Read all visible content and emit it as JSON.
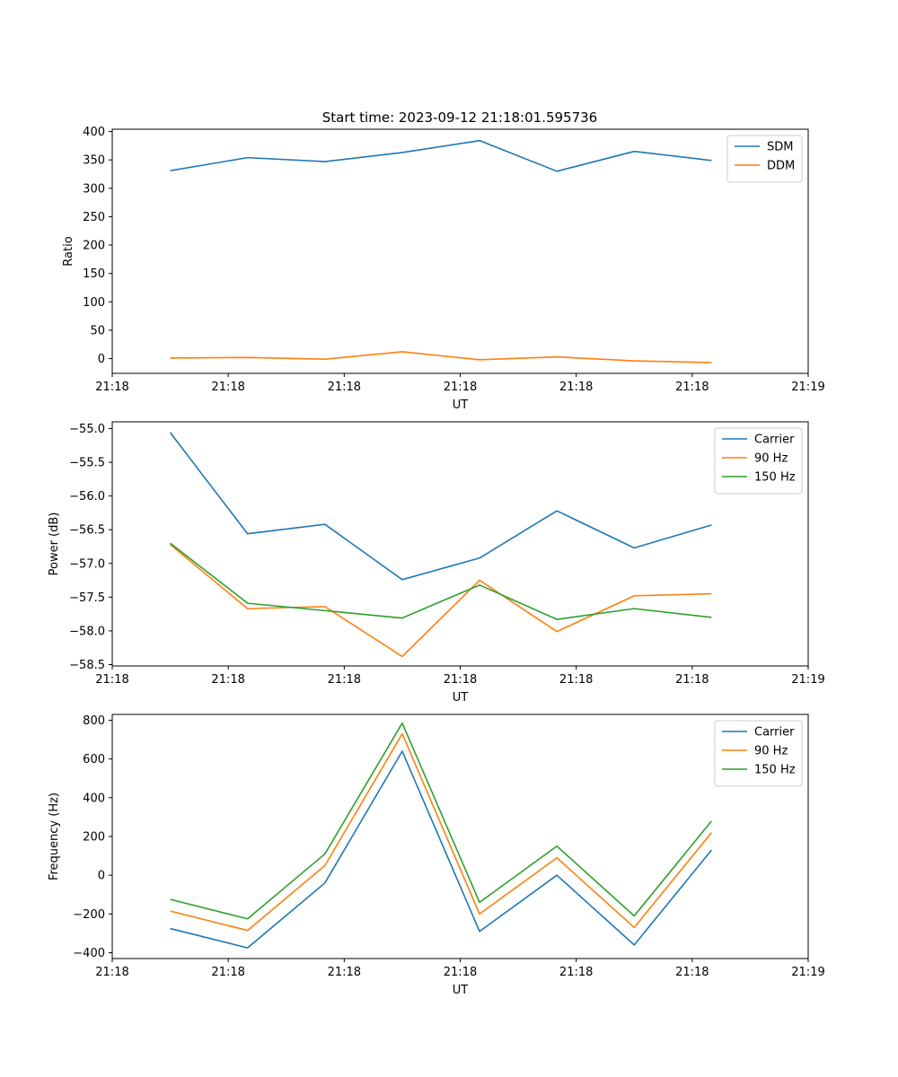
{
  "title": "Start time: 2023-09-12 21:18:01.595736",
  "colors": {
    "blue": "#1f77b4",
    "orange": "#ff7f0e",
    "green": "#2ca02c"
  },
  "chart_data": [
    {
      "type": "line",
      "ylabel": "Ratio",
      "xlabel": "UT",
      "xlim": [
        0,
        9
      ],
      "x": [
        0.75,
        1.75,
        2.75,
        3.75,
        4.75,
        5.75,
        6.75,
        7.75
      ],
      "xticks": [
        0.0,
        1.5,
        3.0,
        4.5,
        6.0,
        7.5,
        9.0
      ],
      "xtick_labels": [
        "21:18",
        "21:18",
        "21:18",
        "21:18",
        "21:18",
        "21:18",
        "21:19"
      ],
      "ylim": [
        -26,
        404
      ],
      "yticks": [
        0,
        50,
        100,
        150,
        200,
        250,
        300,
        350,
        400
      ],
      "ytick_labels": [
        "0",
        "50",
        "100",
        "150",
        "200",
        "250",
        "300",
        "350",
        "400"
      ],
      "legend": "top-right",
      "series": [
        {
          "name": "SDM",
          "color": "blue",
          "values": [
            331,
            354,
            347,
            363,
            384,
            330,
            365,
            349
          ]
        },
        {
          "name": "DDM",
          "color": "orange",
          "values": [
            1,
            2,
            -1,
            12,
            -2,
            3,
            -4,
            -7
          ]
        }
      ]
    },
    {
      "type": "line",
      "ylabel": "Power (dB)",
      "xlabel": "UT",
      "xlim": [
        0,
        9
      ],
      "x": [
        0.75,
        1.75,
        2.75,
        3.75,
        4.75,
        5.75,
        6.75,
        7.75
      ],
      "xticks": [
        0.0,
        1.5,
        3.0,
        4.5,
        6.0,
        7.5,
        9.0
      ],
      "xtick_labels": [
        "21:18",
        "21:18",
        "21:18",
        "21:18",
        "21:18",
        "21:18",
        "21:19"
      ],
      "ylim": [
        -58.52,
        -54.9
      ],
      "yticks": [
        -55.0,
        -55.5,
        -56.0,
        -56.5,
        -57.0,
        -57.5,
        -58.0,
        -58.5
      ],
      "ytick_labels": [
        "−55.0",
        "−55.5",
        "−56.0",
        "−56.5",
        "−57.0",
        "−57.5",
        "−58.0",
        "−58.5"
      ],
      "legend": "top-right",
      "series": [
        {
          "name": "Carrier",
          "color": "blue",
          "values": [
            -55.06,
            -56.56,
            -56.42,
            -57.24,
            -56.92,
            -56.22,
            -56.77,
            -56.43
          ]
        },
        {
          "name": "90 Hz",
          "color": "orange",
          "values": [
            -56.72,
            -57.67,
            -57.64,
            -58.38,
            -57.25,
            -58.01,
            -57.48,
            -57.45
          ]
        },
        {
          "name": "150 Hz",
          "color": "green",
          "values": [
            -56.7,
            -57.59,
            -57.7,
            -57.81,
            -57.32,
            -57.83,
            -57.67,
            -57.8
          ]
        }
      ]
    },
    {
      "type": "line",
      "ylabel": "Frequency (Hz)",
      "xlabel": "UT",
      "xlim": [
        0,
        9
      ],
      "x": [
        0.75,
        1.75,
        2.75,
        3.75,
        4.75,
        5.75,
        6.75,
        7.75
      ],
      "xticks": [
        0.0,
        1.5,
        3.0,
        4.5,
        6.0,
        7.5,
        9.0
      ],
      "xtick_labels": [
        "21:18",
        "21:18",
        "21:18",
        "21:18",
        "21:18",
        "21:18",
        "21:19"
      ],
      "ylim": [
        -430,
        830
      ],
      "yticks": [
        -400,
        -200,
        0,
        200,
        400,
        600,
        800
      ],
      "ytick_labels": [
        "−400",
        "−200",
        "0",
        "200",
        "400",
        "600",
        "800"
      ],
      "legend": "top-right",
      "series": [
        {
          "name": "Carrier",
          "color": "blue",
          "values": [
            -275,
            -375,
            -40,
            640,
            -290,
            0,
            -360,
            130
          ]
        },
        {
          "name": "90 Hz",
          "color": "orange",
          "values": [
            -185,
            -285,
            50,
            730,
            -200,
            90,
            -270,
            220
          ]
        },
        {
          "name": "150 Hz",
          "color": "green",
          "values": [
            -125,
            -225,
            110,
            785,
            -140,
            150,
            -210,
            280
          ]
        }
      ]
    }
  ]
}
